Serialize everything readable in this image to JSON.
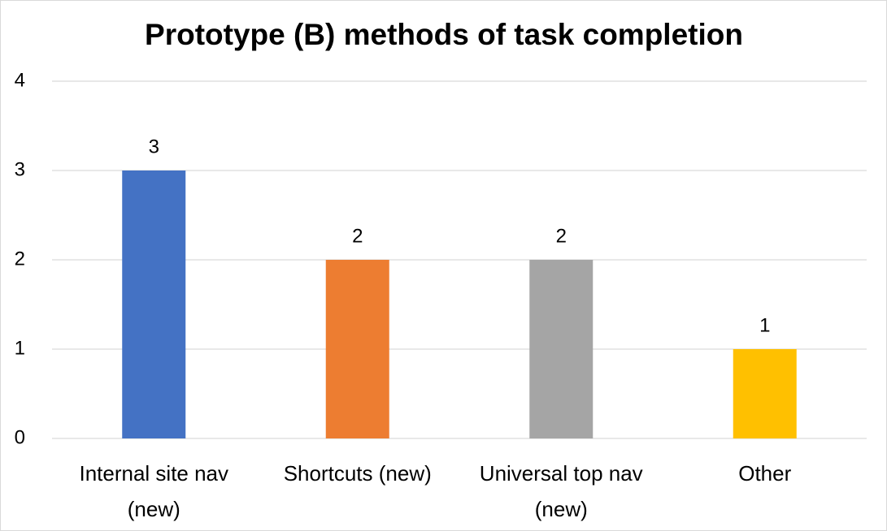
{
  "chart_data": {
    "type": "bar",
    "title": "Prototype (B) methods of task completion",
    "categories": [
      "Internal site nav (new)",
      "Shortcuts (new)",
      "Universal top nav (new)",
      "Other"
    ],
    "values": [
      3,
      2,
      2,
      1
    ],
    "colors": [
      "#4472c4",
      "#ed7d31",
      "#a5a5a5",
      "#ffc000"
    ],
    "ylim": [
      0,
      4
    ],
    "yticks": [
      0,
      1,
      2,
      3,
      4
    ],
    "grid": true
  }
}
